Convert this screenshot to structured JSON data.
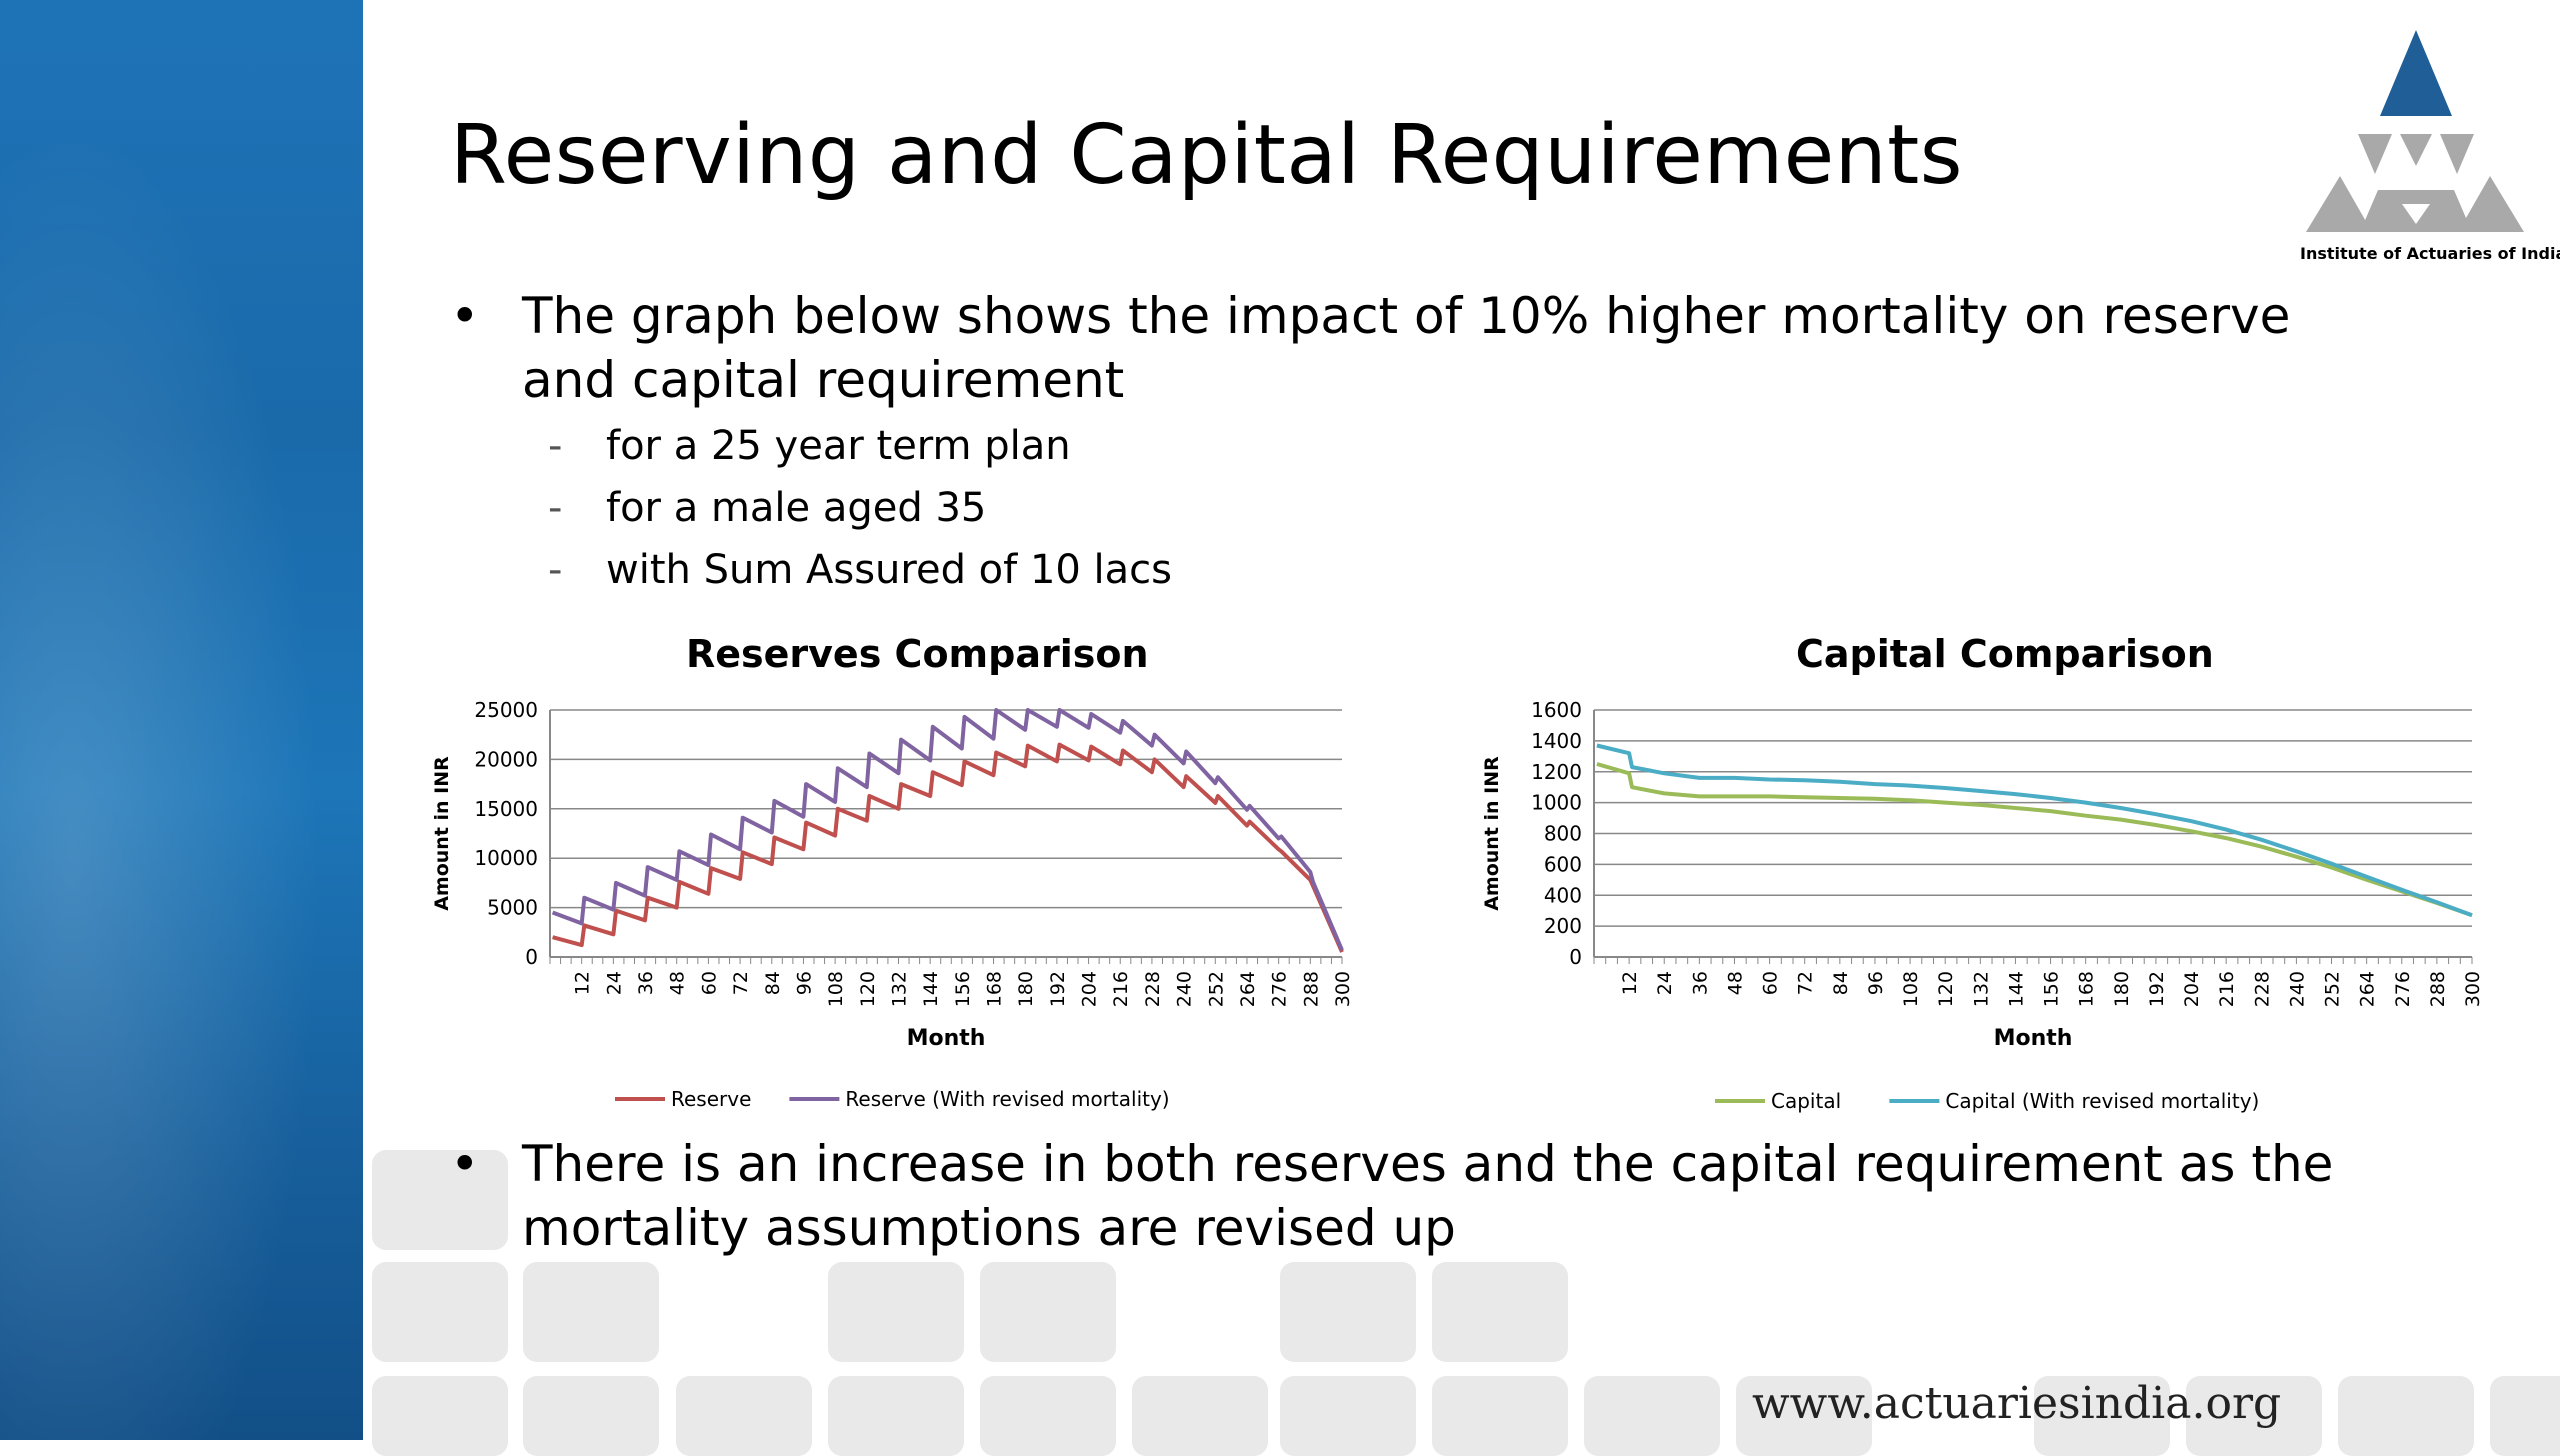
{
  "slide": {
    "title": "Reserving and Capital Requirements",
    "bullet1_line1": "The graph below shows the impact of 10% higher mortality on reserve",
    "bullet1_line2": "and capital requirement",
    "sub_items": [
      "for a 25 year term plan",
      "for a male aged 35",
      "with Sum Assured of 10 lacs"
    ],
    "bullet2_line1": "There is an increase in both reserves and the capital requirement as the",
    "bullet2_line2": "mortality assumptions are revised up",
    "bullet_marker": "•",
    "sub_marker": "-",
    "footer_url": "www.actuariesindia.org"
  },
  "logo": {
    "caption": "Institute of Actuaries of India",
    "colors": {
      "top": "#1f5e96",
      "grey": "#a9a9a9"
    }
  },
  "chart_data": [
    {
      "type": "line",
      "title": "Reserves Comparison",
      "xlabel": "Month",
      "ylabel": "Amount in INR",
      "ylim": [
        0,
        25000
      ],
      "yticks": [
        0,
        5000,
        10000,
        15000,
        20000,
        25000
      ],
      "xticks": [
        12,
        24,
        36,
        48,
        60,
        72,
        84,
        96,
        108,
        120,
        132,
        144,
        156,
        168,
        180,
        192,
        204,
        216,
        228,
        240,
        252,
        264,
        276,
        288,
        300
      ],
      "grid": true,
      "legend_position": "bottom",
      "x": [
        1,
        12,
        13,
        24,
        25,
        36,
        37,
        48,
        49,
        60,
        61,
        72,
        73,
        84,
        85,
        96,
        97,
        108,
        109,
        120,
        121,
        132,
        133,
        144,
        145,
        156,
        157,
        168,
        169,
        180,
        181,
        192,
        193,
        204,
        205,
        216,
        217,
        228,
        229,
        240,
        241,
        252,
        253,
        264,
        265,
        276,
        277,
        288,
        289,
        300
      ],
      "series": [
        {
          "name": "Reserve",
          "color": "#c0504d",
          "values": [
            2000,
            1200,
            3200,
            2300,
            4700,
            3700,
            6000,
            5000,
            7600,
            6400,
            9000,
            7900,
            10600,
            9400,
            12100,
            10900,
            13600,
            12300,
            15000,
            13800,
            16300,
            15000,
            17500,
            16300,
            18700,
            17400,
            19800,
            18400,
            20700,
            19300,
            21400,
            19800,
            21500,
            19900,
            21300,
            19500,
            20900,
            18700,
            20000,
            17200,
            18300,
            15600,
            16300,
            13300,
            13700,
            10900,
            10700,
            7800,
            7200,
            500
          ]
        },
        {
          "name": "Reserve (With revised mortality)",
          "color": "#8064a2",
          "values": [
            4500,
            3400,
            6000,
            4800,
            7500,
            6200,
            9100,
            7800,
            10700,
            9300,
            12400,
            10900,
            14100,
            12600,
            15800,
            14200,
            17500,
            15700,
            19100,
            17200,
            20600,
            18600,
            22000,
            19900,
            23300,
            21100,
            24300,
            22100,
            25000,
            23000,
            25000,
            23300,
            25000,
            23200,
            24600,
            22700,
            23900,
            21400,
            22500,
            19600,
            20800,
            17600,
            18200,
            14900,
            15300,
            12000,
            12200,
            8600,
            7600,
            700
          ]
        }
      ]
    },
    {
      "type": "line",
      "title": "Capital Comparison",
      "xlabel": "Month",
      "ylabel": "Amount in INR",
      "ylim": [
        0,
        1600
      ],
      "yticks": [
        0,
        200,
        400,
        600,
        800,
        1000,
        1200,
        1400,
        1600
      ],
      "xticks": [
        12,
        24,
        36,
        48,
        60,
        72,
        84,
        96,
        108,
        120,
        132,
        144,
        156,
        168,
        180,
        192,
        204,
        216,
        228,
        240,
        252,
        264,
        276,
        288,
        300
      ],
      "grid": true,
      "legend_position": "bottom",
      "x": [
        1,
        12,
        13,
        24,
        36,
        48,
        60,
        72,
        84,
        96,
        108,
        120,
        132,
        144,
        156,
        168,
        180,
        192,
        204,
        216,
        228,
        240,
        252,
        264,
        276,
        288,
        300
      ],
      "series": [
        {
          "name": "Capital",
          "color": "#9bbb59",
          "values": [
            1250,
            1190,
            1100,
            1060,
            1040,
            1040,
            1040,
            1035,
            1030,
            1025,
            1015,
            1000,
            985,
            965,
            945,
            915,
            890,
            855,
            815,
            770,
            715,
            650,
            580,
            500,
            425,
            350,
            270
          ]
        },
        {
          "name": "Capital (With revised mortality)",
          "color": "#4bacc6",
          "values": [
            1370,
            1320,
            1230,
            1190,
            1160,
            1160,
            1150,
            1145,
            1135,
            1120,
            1110,
            1095,
            1075,
            1055,
            1030,
            1000,
            965,
            925,
            880,
            825,
            760,
            685,
            605,
            520,
            435,
            355,
            270
          ]
        }
      ]
    }
  ]
}
